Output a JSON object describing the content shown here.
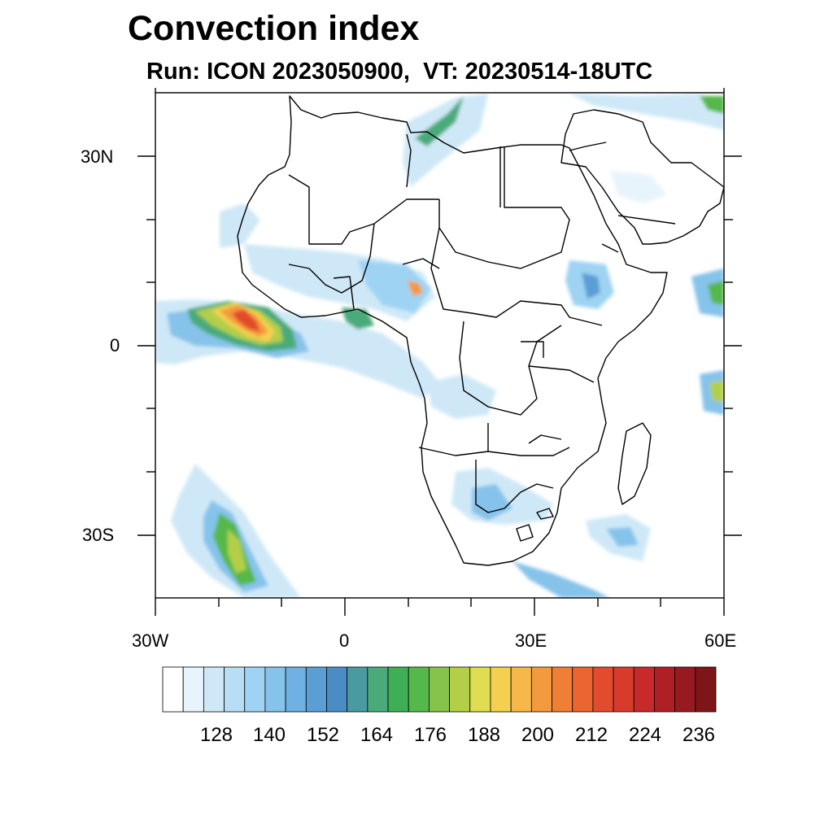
{
  "title": "Convection index",
  "subtitle": "Run: ICON 2023050900,  VT: 20230514-18UTC",
  "axes": {
    "x_ticks": [
      "30W",
      "0",
      "30E",
      "60E"
    ],
    "y_ticks": [
      "30N",
      "0",
      "30S"
    ],
    "lon_range": [
      -30,
      60
    ],
    "lat_range": [
      -40,
      40
    ]
  },
  "colorbar": {
    "labels": [
      "128",
      "140",
      "152",
      "164",
      "176",
      "188",
      "200",
      "212",
      "224",
      "236"
    ],
    "colors": [
      "#ffffff",
      "#e8f4fc",
      "#cfe8f7",
      "#b8def6",
      "#9fd3f3",
      "#86c3ea",
      "#6eb1e2",
      "#5a9ed6",
      "#4a8dc6",
      "#4a9aa2",
      "#4aaa7a",
      "#3faf55",
      "#55b84a",
      "#86c34a",
      "#b3cf4a",
      "#e0dd52",
      "#f5d050",
      "#f6b848",
      "#f49a3e",
      "#ef7f35",
      "#ea6530",
      "#e24c2c",
      "#d83a2c",
      "#c82a2c",
      "#b01f25",
      "#971a20",
      "#7e1519"
    ]
  }
}
